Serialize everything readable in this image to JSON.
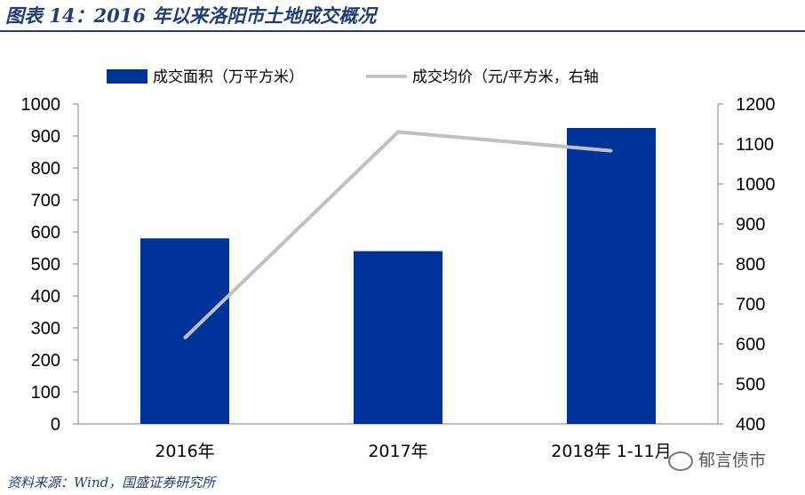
{
  "title": "图表 14：2016 年以来洛阳市土地成交概况",
  "source": "资料来源：Wind，国盛证券研究所",
  "watermark": "郁言债市",
  "colors": {
    "bar": "#003399",
    "line": "#c0c0c0",
    "title": "#1f3d7a"
  },
  "chart_data": {
    "type": "bar",
    "categories": [
      "2016年",
      "2017年",
      "2018年 1-11月"
    ],
    "series": [
      {
        "name": "成交面积（万平方米）",
        "type": "bar",
        "axis": "left",
        "values": [
          580,
          540,
          925
        ]
      },
      {
        "name": "成交均价（元/平方米，右轴",
        "type": "line",
        "axis": "right",
        "values": [
          615,
          1130,
          1083
        ]
      }
    ],
    "ylim_left": [
      0,
      1000
    ],
    "yticks_left": [
      "0",
      "100",
      "200",
      "300",
      "400",
      "500",
      "600",
      "700",
      "800",
      "900",
      "1000"
    ],
    "ylim_right": [
      400,
      1200
    ],
    "yticks_right": [
      "400",
      "500",
      "600",
      "700",
      "800",
      "900",
      "1000",
      "1100",
      "1200"
    ],
    "legend_position": "top",
    "grid": false
  }
}
